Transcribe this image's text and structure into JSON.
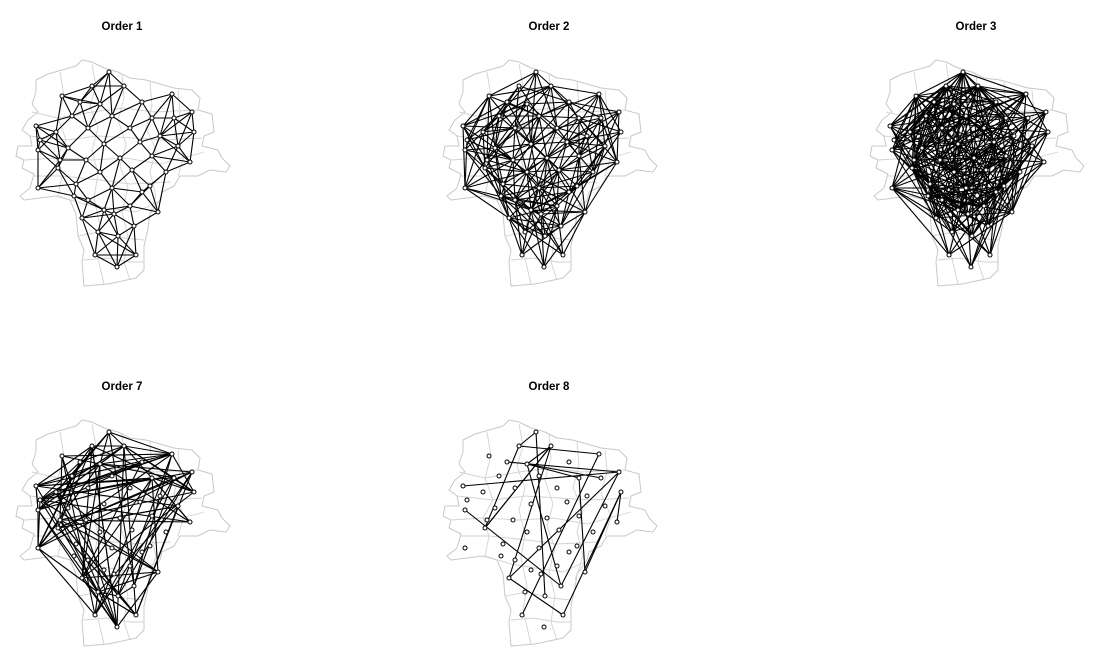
{
  "figure": {
    "panels": [
      {
        "id": "order-1",
        "title": "Order 1"
      },
      {
        "id": "order-2",
        "title": "Order 2"
      },
      {
        "id": "order-3",
        "title": "Order 3"
      },
      {
        "id": "order-7",
        "title": "Order 7"
      },
      {
        "id": "order-8",
        "title": "Order 8"
      }
    ],
    "colors": {
      "background": "#ffffff",
      "edges": "#000000",
      "boundaries": "#c8c8c8"
    }
  }
}
